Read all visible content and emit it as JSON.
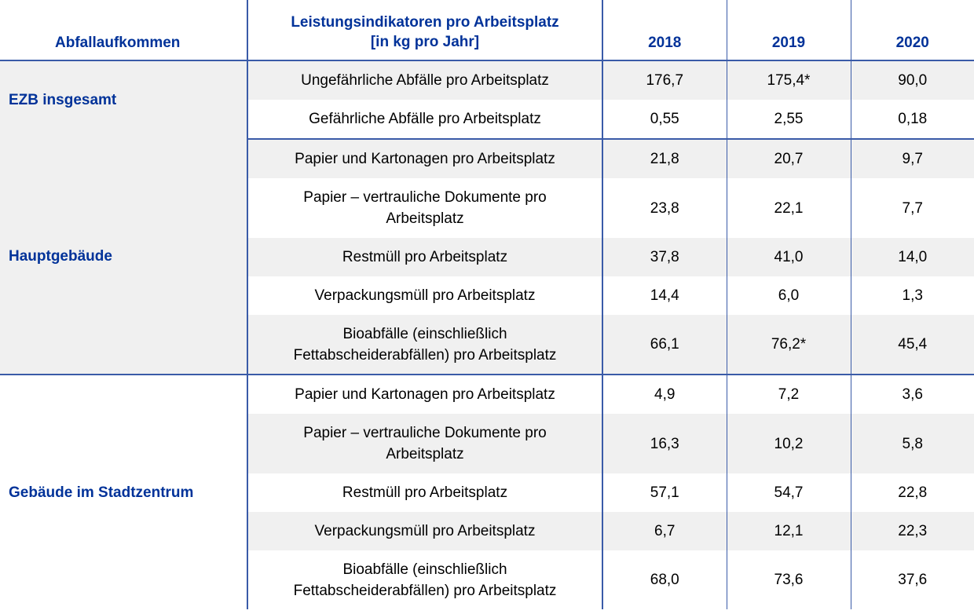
{
  "header": {
    "col0": "Abfallaufkommen",
    "col1_line1": "Leistungsindikatoren pro Arbeitsplatz",
    "col1_line2": "[in kg pro Jahr]",
    "years": [
      "2018",
      "2019",
      "2020"
    ]
  },
  "groups": [
    {
      "name": "EZB insgesamt",
      "rows": [
        {
          "label": "Ungefährliche Abfälle pro Arbeitsplatz",
          "values": [
            "176,7",
            "175,4*",
            "90,0"
          ]
        },
        {
          "label": "Gefährliche Abfälle pro Arbeitsplatz",
          "values": [
            "0,55",
            "2,55",
            "0,18"
          ]
        }
      ]
    },
    {
      "name": "Hauptgebäude",
      "rows": [
        {
          "label": "Papier und Kartonagen pro Arbeitsplatz",
          "values": [
            "21,8",
            "20,7",
            "9,7"
          ]
        },
        {
          "label_line1": "Papier – vertrauliche Dokumente pro",
          "label_line2": "Arbeitsplatz",
          "values": [
            "23,8",
            "22,1",
            "7,7"
          ]
        },
        {
          "label": "Restmüll pro Arbeitsplatz",
          "values": [
            "37,8",
            "41,0",
            "14,0"
          ]
        },
        {
          "label": "Verpackungsmüll pro Arbeitsplatz",
          "values": [
            "14,4",
            "6,0",
            "1,3"
          ]
        },
        {
          "label_line1": "Bioabfälle (einschließlich",
          "label_line2": "Fettabscheiderabfällen) pro Arbeitsplatz",
          "values": [
            "66,1",
            "76,2*",
            "45,4"
          ]
        }
      ]
    },
    {
      "name": "Gebäude im Stadtzentrum",
      "rows": [
        {
          "label": "Papier und Kartonagen pro Arbeitsplatz",
          "values": [
            "4,9",
            "7,2",
            "3,6"
          ]
        },
        {
          "label_line1": "Papier – vertrauliche Dokumente pro",
          "label_line2": "Arbeitsplatz",
          "values": [
            "16,3",
            "10,2",
            "5,8"
          ]
        },
        {
          "label": "Restmüll pro Arbeitsplatz",
          "values": [
            "57,1",
            "54,7",
            "22,8"
          ]
        },
        {
          "label": "Verpackungsmüll pro Arbeitsplatz",
          "values": [
            "6,7",
            "12,1",
            "22,3"
          ]
        },
        {
          "label_line1": "Bioabfälle (einschließlich",
          "label_line2": "Fettabscheiderabfällen) pro Arbeitsplatz",
          "values": [
            "68,0",
            "73,6",
            "37,6"
          ]
        }
      ]
    }
  ],
  "colors": {
    "header_text": "#003299",
    "rule": "#3a5ba8",
    "shade": "#f0f0f0"
  }
}
